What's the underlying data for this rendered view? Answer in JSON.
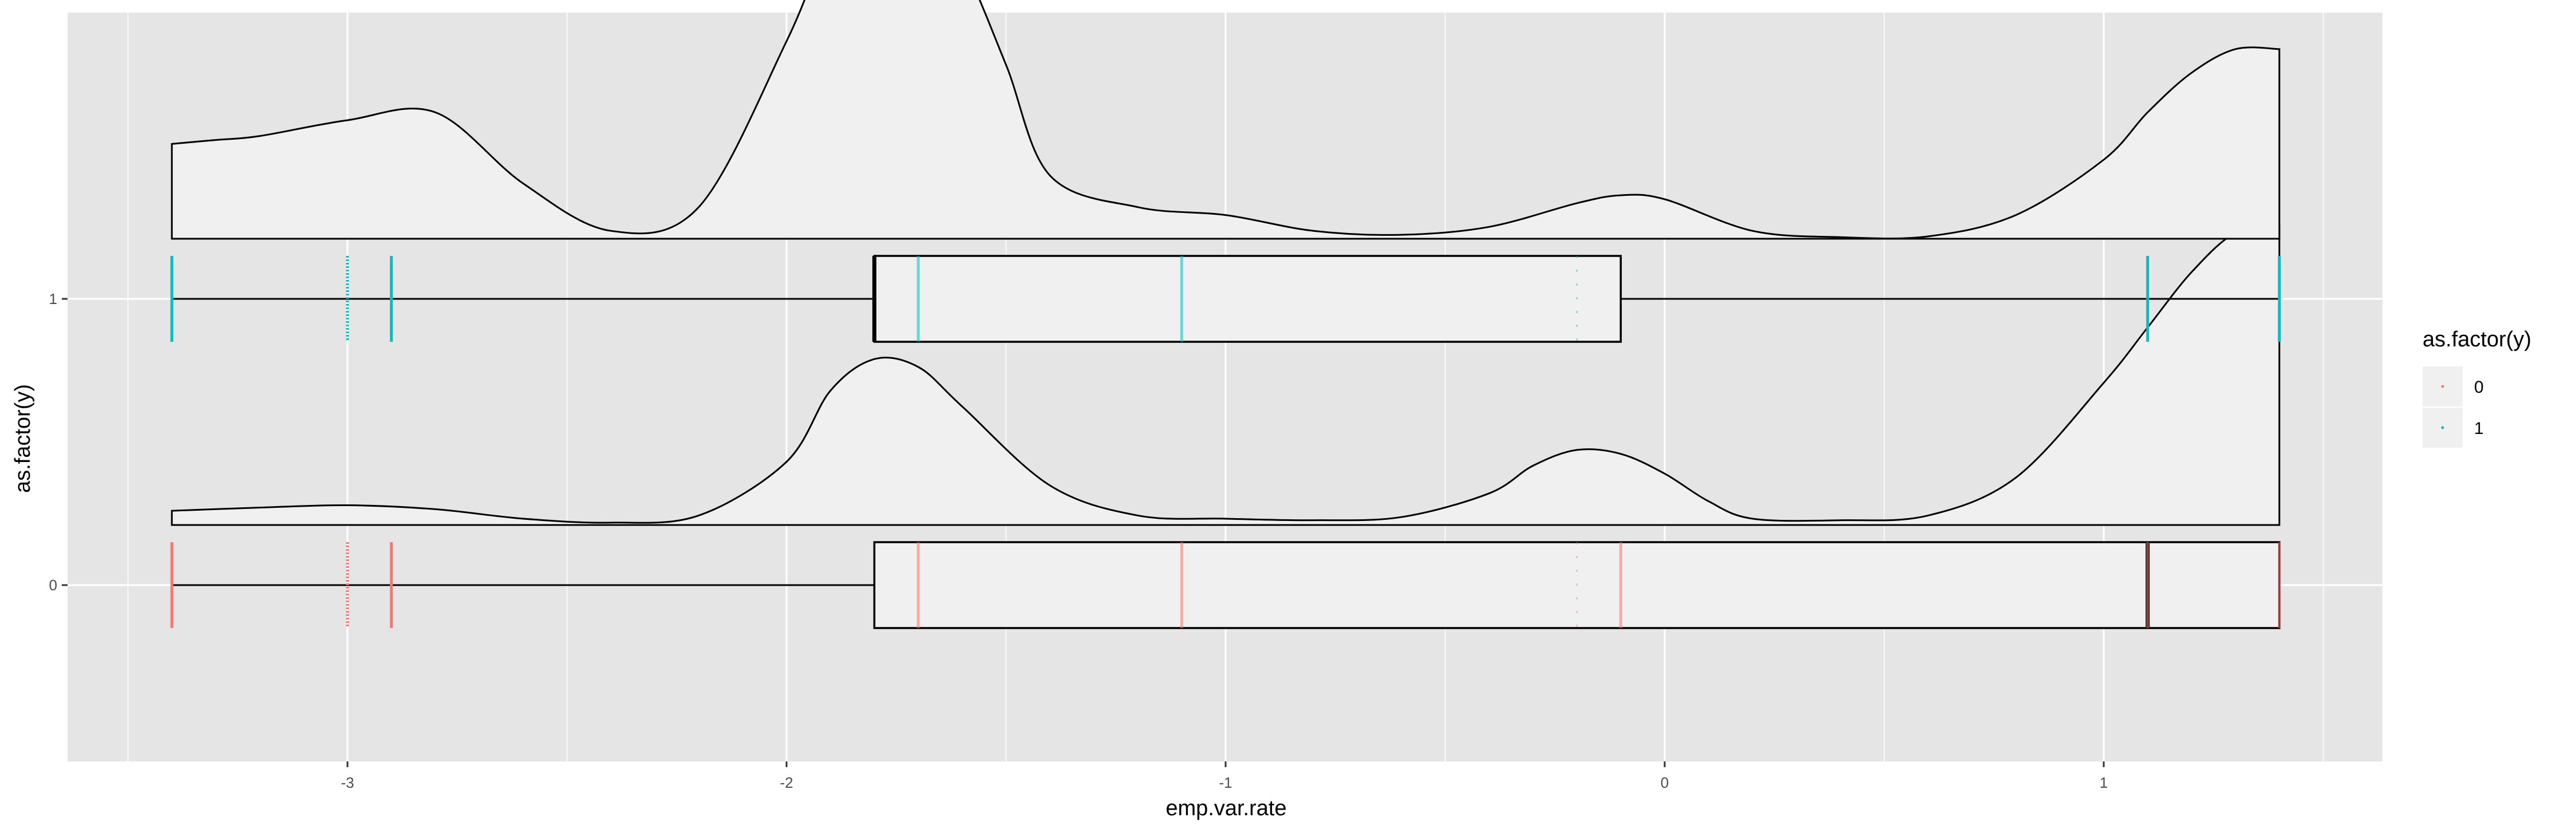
{
  "chart_data": {
    "type": "box-plot with jittered points and density (raincloud)",
    "xlabel": "emp.var.rate",
    "ylabel": "as.factor(y)",
    "x_ticks": [
      "-3",
      "-2",
      "-1",
      "0",
      "1"
    ],
    "y_ticks": [
      "0",
      "1"
    ],
    "xlim": [
      -3.5,
      1.55
    ],
    "ylim": [
      -0.6,
      1.98
    ],
    "grid": true,
    "legend": {
      "title": "as.factor(y)",
      "position": "right",
      "entries": [
        {
          "label": "0",
          "color": "#F8766D"
        },
        {
          "label": "1",
          "color": "#00BFC4"
        }
      ]
    },
    "panel_background": "#E5E5E5",
    "density_fill": "#F0F0F0",
    "groups": [
      {
        "name": "0",
        "y": 0,
        "color": "#F8766D",
        "box": {
          "min": -3.4,
          "q1": -1.8,
          "median": 1.1,
          "q3": 1.4,
          "max": 1.4
        },
        "point_values": [
          -3.4,
          -3.0,
          -2.9,
          -1.7,
          -1.1,
          -0.2,
          -0.1,
          1.1,
          1.4
        ],
        "density": {
          "x": [
            -3.4,
            -3.2,
            -3.0,
            -2.8,
            -2.6,
            -2.4,
            -2.2,
            -2.0,
            -1.9,
            -1.8,
            -1.7,
            -1.6,
            -1.4,
            -1.2,
            -1.0,
            -0.8,
            -0.6,
            -0.4,
            -0.3,
            -0.2,
            -0.1,
            0.0,
            0.1,
            0.2,
            0.4,
            0.6,
            0.8,
            1.0,
            1.1,
            1.2,
            1.3,
            1.4
          ],
          "y": [
            0.018,
            0.022,
            0.025,
            0.02,
            0.008,
            0.003,
            0.012,
            0.08,
            0.17,
            0.21,
            0.2,
            0.15,
            0.05,
            0.012,
            0.008,
            0.006,
            0.01,
            0.04,
            0.075,
            0.095,
            0.09,
            0.065,
            0.03,
            0.008,
            0.006,
            0.012,
            0.06,
            0.18,
            0.25,
            0.32,
            0.37,
            0.38
          ]
        }
      },
      {
        "name": "1",
        "y": 1,
        "color": "#00BFC4",
        "box": {
          "min": -3.4,
          "q1": -1.8,
          "median": -1.8,
          "q3": -0.1,
          "max": 1.4
        },
        "point_values": [
          -3.4,
          -3.0,
          -2.9,
          -1.7,
          -1.1,
          -0.2,
          1.1,
          1.4
        ],
        "density": {
          "x": [
            -3.4,
            -3.3,
            -3.2,
            -3.0,
            -2.8,
            -2.6,
            -2.4,
            -2.2,
            -2.0,
            -1.9,
            -1.8,
            -1.7,
            -1.6,
            -1.5,
            -1.4,
            -1.2,
            -1.0,
            -0.8,
            -0.6,
            -0.4,
            -0.2,
            -0.1,
            0.0,
            0.2,
            0.4,
            0.6,
            0.8,
            1.0,
            1.1,
            1.2,
            1.3,
            1.4
          ],
          "y": [
            0.12,
            0.125,
            0.13,
            0.15,
            0.16,
            0.07,
            0.01,
            0.04,
            0.25,
            0.38,
            0.44,
            0.43,
            0.35,
            0.22,
            0.08,
            0.04,
            0.03,
            0.01,
            0.005,
            0.015,
            0.045,
            0.055,
            0.05,
            0.01,
            0.002,
            0.003,
            0.03,
            0.1,
            0.16,
            0.21,
            0.24,
            0.24
          ]
        }
      }
    ]
  }
}
